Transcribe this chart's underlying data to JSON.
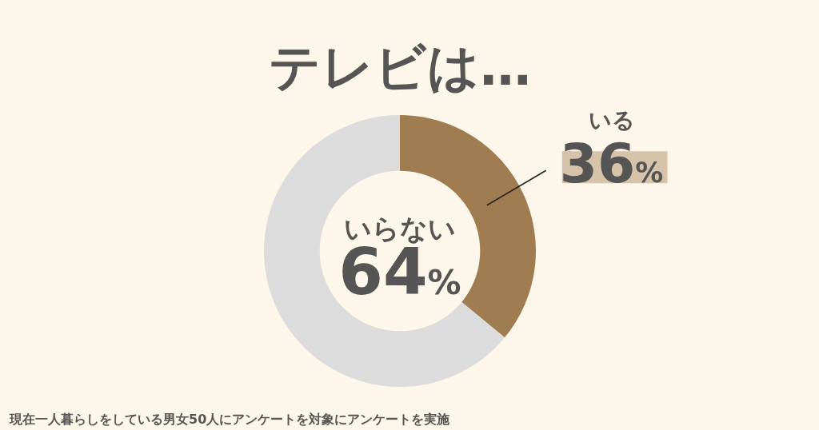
{
  "chart_data": {
    "type": "donut",
    "title": "テレビは…",
    "categories": [
      "いる",
      "いらない"
    ],
    "values": [
      36,
      64
    ],
    "colors": [
      "#a07d50",
      "#dcdcdc"
    ],
    "value_labels": [
      "36%",
      "64%"
    ],
    "annotations": [
      "現在一人暮らしをしている男女50人にアンケートを対象にアンケートを実施"
    ]
  }
}
